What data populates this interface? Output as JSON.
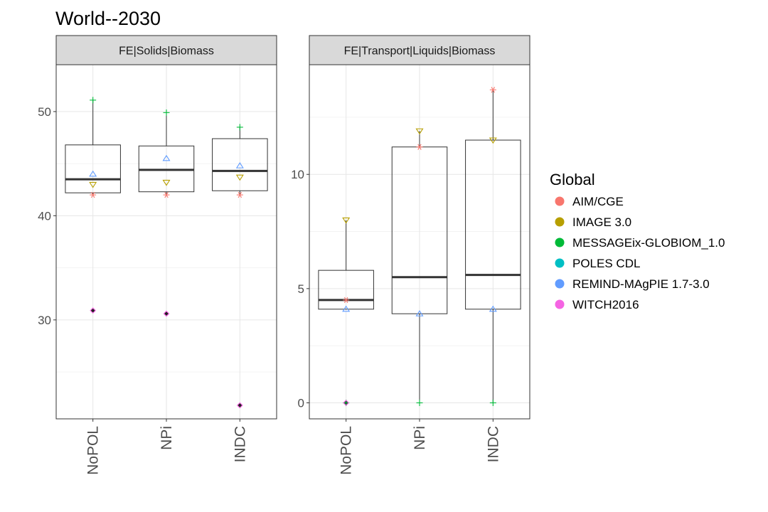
{
  "chart_data": {
    "type": "boxplot",
    "title": "World--2030",
    "legend": {
      "title": "Global",
      "position": "right",
      "entries": [
        {
          "name": "AIM/CGE",
          "color": "#F8766D",
          "shape": "asterisk"
        },
        {
          "name": "IMAGE 3.0",
          "color": "#B79F00",
          "shape": "triangle-down"
        },
        {
          "name": "MESSAGEix-GLOBIOM_1.0",
          "color": "#00BA38",
          "shape": "plus"
        },
        {
          "name": "POLES CDL",
          "color": "#00BFC4",
          "shape": "square-x"
        },
        {
          "name": "REMIND-MAgPIE 1.7-3.0",
          "color": "#619CFF",
          "shape": "triangle-up"
        },
        {
          "name": "WITCH2016",
          "color": "#F564E3",
          "shape": "diamond"
        }
      ]
    },
    "panels": [
      {
        "strip": "FE|Solids|Biomass",
        "categories": [
          "NoPOL",
          "NPi",
          "INDC"
        ],
        "ylim": [
          20.5,
          54.5
        ],
        "yticks": [
          30,
          40,
          50
        ],
        "ytick_labels": [
          "30",
          "40",
          "50"
        ],
        "boxes": [
          {
            "category": "NoPOL",
            "q1": 42.2,
            "median": 43.5,
            "q3": 46.8,
            "whisker_low": 42.0,
            "whisker_high": 51.1
          },
          {
            "category": "NPi",
            "q1": 42.3,
            "median": 44.4,
            "q3": 46.7,
            "whisker_low": 42.0,
            "whisker_high": 49.9
          },
          {
            "category": "INDC",
            "q1": 42.4,
            "median": 44.3,
            "q3": 47.4,
            "whisker_low": 42.0,
            "whisker_high": 48.5
          }
        ],
        "points": [
          {
            "category": "NoPOL",
            "model": "MESSAGEix-GLOBIOM_1.0",
            "value": 51.1
          },
          {
            "category": "NoPOL",
            "model": "REMIND-MAgPIE 1.7-3.0",
            "value": 44.0
          },
          {
            "category": "NoPOL",
            "model": "IMAGE 3.0",
            "value": 43.0
          },
          {
            "category": "NoPOL",
            "model": "AIM/CGE",
            "value": 42.0
          },
          {
            "category": "NoPOL",
            "model": "WITCH2016",
            "value": 30.9
          },
          {
            "category": "NPi",
            "model": "MESSAGEix-GLOBIOM_1.0",
            "value": 49.9
          },
          {
            "category": "NPi",
            "model": "REMIND-MAgPIE 1.7-3.0",
            "value": 45.5
          },
          {
            "category": "NPi",
            "model": "IMAGE 3.0",
            "value": 43.2
          },
          {
            "category": "NPi",
            "model": "AIM/CGE",
            "value": 42.0
          },
          {
            "category": "NPi",
            "model": "WITCH2016",
            "value": 30.6
          },
          {
            "category": "INDC",
            "model": "MESSAGEix-GLOBIOM_1.0",
            "value": 48.5
          },
          {
            "category": "INDC",
            "model": "REMIND-MAgPIE 1.7-3.0",
            "value": 44.8
          },
          {
            "category": "INDC",
            "model": "IMAGE 3.0",
            "value": 43.7
          },
          {
            "category": "INDC",
            "model": "AIM/CGE",
            "value": 42.0
          },
          {
            "category": "INDC",
            "model": "WITCH2016",
            "value": 21.8
          }
        ],
        "outliers": [
          {
            "category": "NoPOL",
            "value": 30.9
          },
          {
            "category": "NPi",
            "value": 30.6
          },
          {
            "category": "INDC",
            "value": 21.8
          }
        ]
      },
      {
        "strip": "FE|Transport|Liquids|Biomass",
        "categories": [
          "NoPOL",
          "NPi",
          "INDC"
        ],
        "ylim": [
          -0.7,
          14.8
        ],
        "yticks": [
          0,
          5,
          10
        ],
        "ytick_labels": [
          "0",
          "5",
          "10"
        ],
        "boxes": [
          {
            "category": "NoPOL",
            "q1": 4.1,
            "median": 4.5,
            "q3": 5.8,
            "whisker_low": 4.1,
            "whisker_high": 8.0
          },
          {
            "category": "NPi",
            "q1": 3.9,
            "median": 5.5,
            "q3": 11.2,
            "whisker_low": 0.0,
            "whisker_high": 11.9
          },
          {
            "category": "INDC",
            "q1": 4.1,
            "median": 5.6,
            "q3": 11.5,
            "whisker_low": 0.0,
            "whisker_high": 13.7
          }
        ],
        "points": [
          {
            "category": "NoPOL",
            "model": "IMAGE 3.0",
            "value": 8.0
          },
          {
            "category": "NoPOL",
            "model": "AIM/CGE",
            "value": 4.5
          },
          {
            "category": "NoPOL",
            "model": "REMIND-MAgPIE 1.7-3.0",
            "value": 4.1
          },
          {
            "category": "NoPOL",
            "model": "MESSAGEix-GLOBIOM_1.0",
            "value": 0.0
          },
          {
            "category": "NoPOL",
            "model": "WITCH2016",
            "value": 0.0
          },
          {
            "category": "NPi",
            "model": "IMAGE 3.0",
            "value": 11.9
          },
          {
            "category": "NPi",
            "model": "AIM/CGE",
            "value": 11.2
          },
          {
            "category": "NPi",
            "model": "REMIND-MAgPIE 1.7-3.0",
            "value": 3.9
          },
          {
            "category": "NPi",
            "model": "MESSAGEix-GLOBIOM_1.0",
            "value": 0.0
          },
          {
            "category": "INDC",
            "model": "AIM/CGE",
            "value": 13.7
          },
          {
            "category": "INDC",
            "model": "IMAGE 3.0",
            "value": 11.5
          },
          {
            "category": "INDC",
            "model": "REMIND-MAgPIE 1.7-3.0",
            "value": 4.1
          },
          {
            "category": "INDC",
            "model": "MESSAGEix-GLOBIOM_1.0",
            "value": 0.0
          }
        ],
        "outliers": [
          {
            "category": "NoPOL",
            "value": 0.0
          }
        ]
      }
    ],
    "grid": true
  }
}
